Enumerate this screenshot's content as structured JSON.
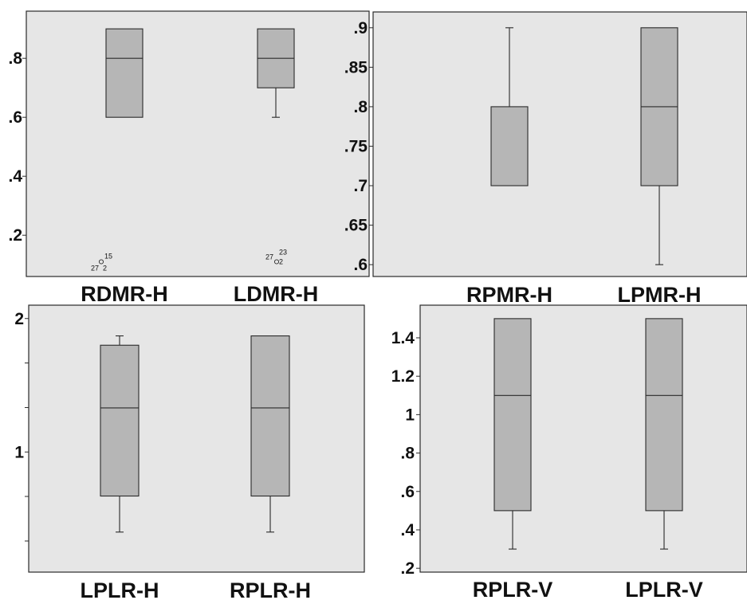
{
  "chart_data": [
    {
      "type": "box",
      "ylim": [
        0.06,
        0.96
      ],
      "yticks": [
        0.2,
        0.4,
        0.6,
        0.8
      ],
      "ytick_labels": [
        ".2",
        ".4",
        ".6",
        ".8"
      ],
      "grid": false,
      "categories": [
        "RDMR-H",
        "LDMR-H"
      ],
      "boxes": [
        {
          "category": "RDMR-H",
          "whisker_low": 0.6,
          "q1": 0.6,
          "median": 0.8,
          "q3": 0.9,
          "whisker_high": 0.9,
          "outliers": [
            {
              "value": 0.11,
              "labels": [
                "15",
                "27",
                "2"
              ]
            }
          ]
        },
        {
          "category": "LDMR-H",
          "whisker_low": 0.6,
          "q1": 0.7,
          "median": 0.8,
          "q3": 0.9,
          "whisker_high": 0.9,
          "outliers": [
            {
              "value": 0.11,
              "labels": [
                "27",
                "23",
                "2"
              ]
            }
          ]
        }
      ]
    },
    {
      "type": "box",
      "ylim": [
        0.585,
        0.92
      ],
      "yticks": [
        0.6,
        0.65,
        0.7,
        0.75,
        0.8,
        0.85,
        0.9
      ],
      "ytick_labels": [
        ".6",
        ".65",
        ".7",
        ".75",
        ".8",
        ".85",
        ".9"
      ],
      "grid": false,
      "categories": [
        "RPMR-H",
        "LPMR-H"
      ],
      "boxes": [
        {
          "category": "RPMR-H",
          "whisker_low": 0.7,
          "q1": 0.7,
          "median": 0.8,
          "q3": 0.8,
          "whisker_high": 0.9,
          "outliers": []
        },
        {
          "category": "LPMR-H",
          "whisker_low": 0.6,
          "q1": 0.7,
          "median": 0.8,
          "q3": 0.9,
          "whisker_high": 0.9,
          "outliers": []
        }
      ]
    },
    {
      "type": "box",
      "ylim": [
        0.1,
        2.1
      ],
      "yticks": [
        0.333,
        0.667,
        1,
        1.333,
        1.667,
        2
      ],
      "ytick_labels": [
        "",
        "",
        "1",
        "",
        "",
        "2"
      ],
      "grid": false,
      "categories": [
        "LPLR-H",
        "RPLR-H"
      ],
      "boxes": [
        {
          "category": "LPLR-H",
          "whisker_low": 0.4,
          "q1": 0.67,
          "median": 1.33,
          "q3": 1.8,
          "whisker_high": 1.87,
          "outliers": []
        },
        {
          "category": "RPLR-H",
          "whisker_low": 0.4,
          "q1": 0.67,
          "median": 1.33,
          "q3": 1.87,
          "whisker_high": 1.87,
          "outliers": []
        }
      ]
    },
    {
      "type": "box",
      "ylim": [
        0.18,
        1.57
      ],
      "yticks": [
        0.2,
        0.4,
        0.6,
        0.8,
        1.0,
        1.2,
        1.4
      ],
      "ytick_labels": [
        ".2",
        ".4",
        ".6",
        ".8",
        "1",
        "1.2",
        "1.4"
      ],
      "grid": false,
      "categories": [
        "RPLR-V",
        "LPLR-V"
      ],
      "boxes": [
        {
          "category": "RPLR-V",
          "whisker_low": 0.3,
          "q1": 0.5,
          "median": 1.1,
          "q3": 1.5,
          "whisker_high": 1.5,
          "outliers": []
        },
        {
          "category": "LPLR-V",
          "whisker_low": 0.3,
          "q1": 0.5,
          "median": 1.1,
          "q3": 1.5,
          "whisker_high": 1.5,
          "outliers": []
        }
      ]
    }
  ],
  "colors": {
    "panel_background": "#e6e6e6",
    "box_fill": "#b6b6b6",
    "stroke": "#2a2a2a",
    "text": "#111111"
  }
}
